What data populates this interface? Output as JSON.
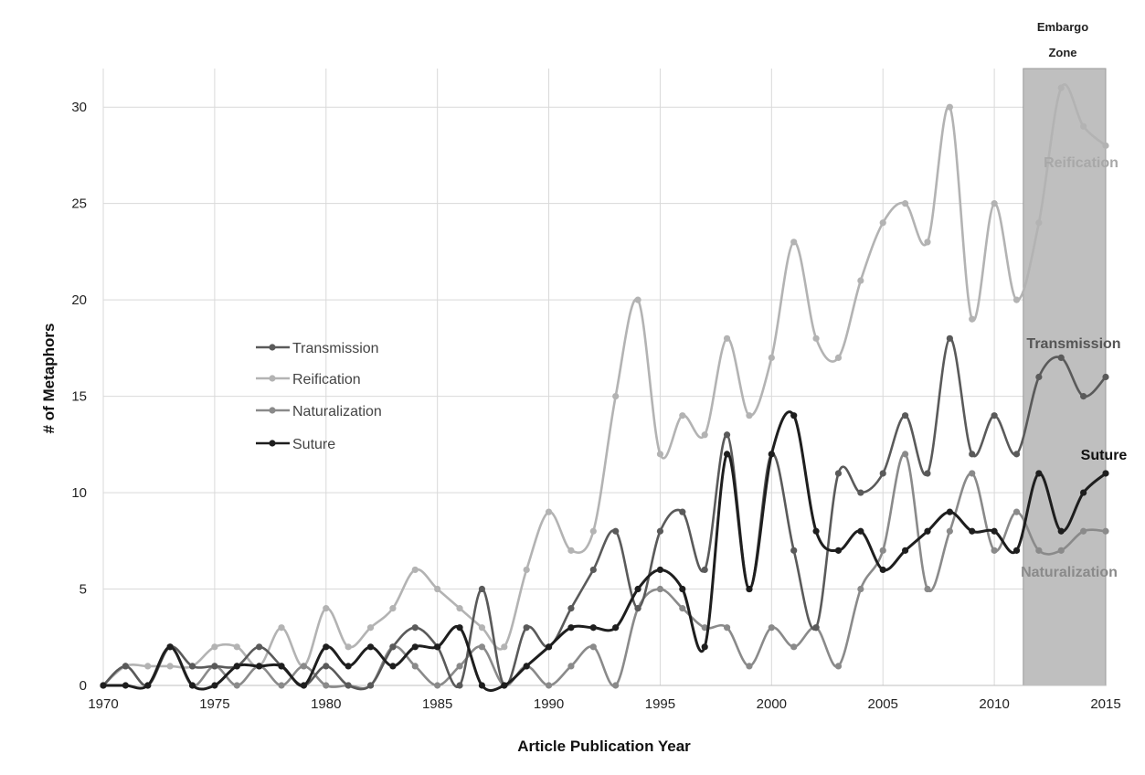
{
  "chart_data": {
    "type": "line",
    "xlabel": "Article Publication Year",
    "ylabel": "# of Metaphors",
    "xlim": [
      1970,
      2015
    ],
    "ylim": [
      0,
      32
    ],
    "x_ticks": [
      1970,
      1975,
      1980,
      1985,
      1990,
      1995,
      2000,
      2005,
      2010,
      2015
    ],
    "y_ticks": [
      0,
      5,
      10,
      15,
      20,
      25,
      30
    ],
    "grid": true,
    "legend_position": "center-left",
    "shaded_region": {
      "label_line1": "Embargo",
      "label_line2": "Zone",
      "x_range": [
        2011.3,
        2015
      ],
      "color": "#bfbfbf"
    },
    "x": [
      1970,
      1971,
      1972,
      1973,
      1974,
      1975,
      1976,
      1977,
      1978,
      1979,
      1980,
      1981,
      1982,
      1983,
      1984,
      1985,
      1986,
      1987,
      1988,
      1989,
      1990,
      1991,
      1992,
      1993,
      1994,
      1995,
      1996,
      1997,
      1998,
      1999,
      2000,
      2001,
      2002,
      2003,
      2004,
      2005,
      2006,
      2007,
      2008,
      2009,
      2010,
      2011,
      2012,
      2013,
      2014,
      2015
    ],
    "series": [
      {
        "name": "Transmission",
        "color": "#5a5a5a",
        "end_label": "Transmission",
        "values": [
          0,
          1,
          0,
          2,
          1,
          1,
          1,
          2,
          1,
          0,
          1,
          0,
          0,
          2,
          3,
          2,
          0,
          5,
          0,
          3,
          2,
          4,
          6,
          8,
          4,
          8,
          9,
          6,
          13,
          5,
          12,
          7,
          3,
          11,
          10,
          11,
          14,
          11,
          18,
          12,
          14,
          12,
          16,
          17,
          15,
          16
        ]
      },
      {
        "name": "Reification",
        "color": "#b3b3b3",
        "end_label": "Reification",
        "values": [
          0,
          1,
          1,
          1,
          1,
          2,
          2,
          1,
          3,
          1,
          4,
          2,
          3,
          4,
          6,
          5,
          4,
          3,
          2,
          6,
          9,
          7,
          8,
          15,
          20,
          12,
          14,
          13,
          18,
          14,
          17,
          23,
          18,
          17,
          21,
          24,
          25,
          23,
          30,
          19,
          25,
          20,
          24,
          31,
          29,
          28
        ]
      },
      {
        "name": "Naturalization",
        "color": "#8a8a8a",
        "end_label": "Naturalization",
        "values": [
          0,
          1,
          0,
          2,
          0,
          1,
          0,
          1,
          0,
          1,
          0,
          0,
          0,
          2,
          1,
          0,
          1,
          2,
          0,
          1,
          0,
          1,
          2,
          0,
          4,
          5,
          4,
          3,
          3,
          1,
          3,
          2,
          3,
          1,
          5,
          7,
          12,
          5,
          8,
          11,
          7,
          9,
          7,
          7,
          8,
          8
        ]
      },
      {
        "name": "Suture",
        "color": "#1e1e1e",
        "end_label": "Suture",
        "values": [
          0,
          0,
          0,
          2,
          0,
          0,
          1,
          1,
          1,
          0,
          2,
          1,
          2,
          1,
          2,
          2,
          3,
          0,
          0,
          1,
          2,
          3,
          3,
          3,
          5,
          6,
          5,
          2,
          12,
          5,
          12,
          14,
          8,
          7,
          8,
          6,
          7,
          8,
          9,
          8,
          8,
          7,
          11,
          8,
          10,
          11
        ]
      }
    ]
  }
}
